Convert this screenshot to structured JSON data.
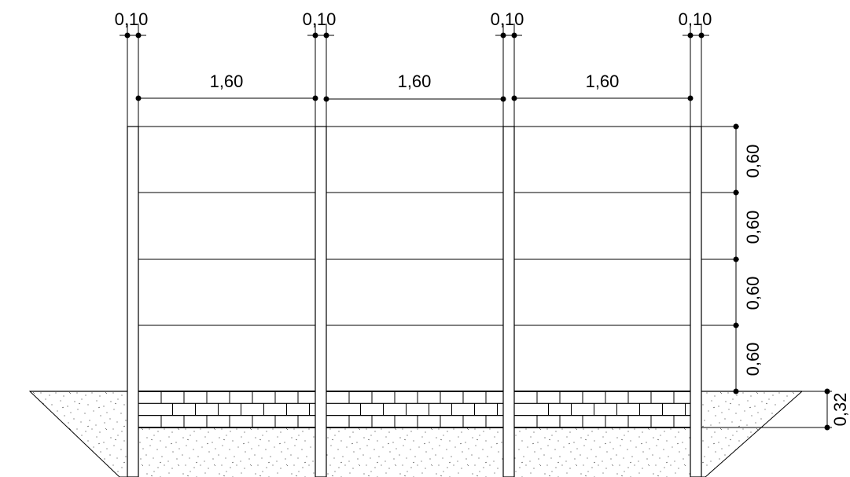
{
  "drawing": {
    "post_widths": [
      "0,10",
      "0,10",
      "0,10",
      "0,10"
    ],
    "bay_widths": [
      "1,60",
      "1,60",
      "1,60"
    ],
    "panel_heights": [
      "0,60",
      "0,60",
      "0,60",
      "0,60"
    ],
    "footing_height": "0,32"
  }
}
